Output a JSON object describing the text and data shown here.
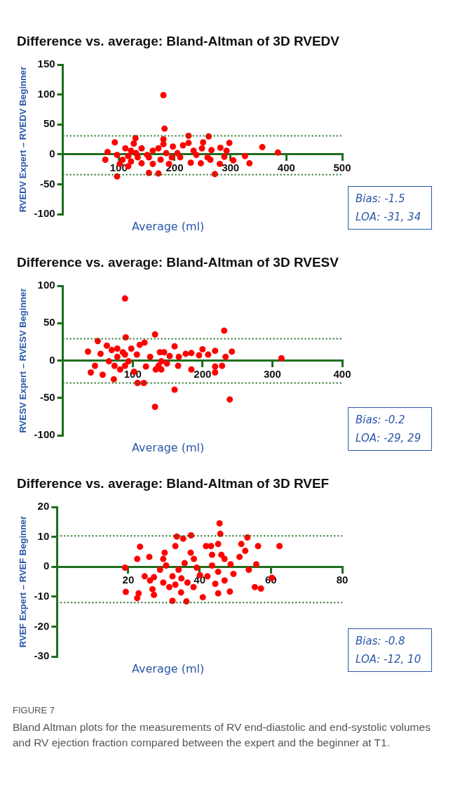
{
  "chart_data": [
    {
      "type": "scatter",
      "title": "Difference vs. average: Bland-Altman of 3D RVEDV",
      "xlabel": "Average (ml)",
      "ylabel": "RVEDV Expert – RVEDV Beginner",
      "xlim": [
        0,
        500
      ],
      "xticks": [
        100,
        200,
        300,
        400,
        500
      ],
      "ylim": [
        -100,
        150
      ],
      "yticks": [
        -100,
        -50,
        0,
        50,
        100,
        150
      ],
      "marker": "circle",
      "series": [
        {
          "color": "#ff0000",
          "x": [
            180,
            182,
            180,
            225,
            261,
            130,
            93,
            127,
            298,
            357,
            385,
            251,
            80,
            76,
            97,
            154,
            171,
            272,
            247,
            281,
            334,
            305,
            326,
            289,
            266,
            293,
            282,
            215,
            225,
            197,
            210,
            229,
            190,
            175,
            161,
            141,
            117,
            107,
            97,
            112,
            122,
            131,
            141,
            151,
            161,
            171,
            180,
            185,
            195,
            205,
            239,
            249,
            259,
            154,
            134,
            117,
            122,
            102,
            234,
            264
          ],
          "values": [
            99,
            43,
            25,
            31,
            30,
            27,
            20,
            18,
            19,
            12,
            3,
            20,
            4,
            -9,
            -37,
            -31,
            -32,
            -33,
            -15,
            -16,
            -15,
            -10,
            -3,
            -4,
            7,
            6,
            11,
            15,
            19,
            13,
            -5,
            -14,
            -16,
            -9,
            -16,
            -15,
            -20,
            -9,
            -1,
            10,
            6,
            2,
            10,
            -1,
            6,
            10,
            17,
            2,
            -5,
            2,
            -1,
            10,
            -5,
            -5,
            -5,
            -3,
            -12,
            -16,
            6,
            -9
          ]
        }
      ],
      "ref_lines": [
        {
          "axis": "y",
          "value": 31,
          "color": "#1e6e1e",
          "line_style": "dotted"
        },
        {
          "axis": "y",
          "value": -34,
          "color": "#1e6e1e",
          "line_style": "dotted"
        }
      ],
      "annotations": [
        "Bias: -1.5",
        "LOA: -31, 34"
      ]
    },
    {
      "type": "scatter",
      "title": "Difference vs. average: Bland-Altman of 3D RVESV",
      "xlabel": "Average (ml)",
      "ylabel": "RVESV Expert – RVESV Beginner",
      "xlim": [
        0,
        400
      ],
      "xticks": [
        100,
        200,
        300,
        400
      ],
      "ylim": [
        -100,
        100
      ],
      "yticks": [
        -100,
        -50,
        0,
        50,
        100
      ],
      "marker": "circle",
      "series": [
        {
          "color": "#ff0000",
          "x": [
            89,
            90,
            132,
            231,
            239,
            132,
            160,
            107,
            116,
            73,
            313,
            242,
            233,
            228,
            218,
            218,
            218,
            200,
            208,
            195,
            184,
            184,
            176,
            166,
            160,
            165,
            153,
            145,
            141,
            137,
            133,
            141,
            149,
            125,
            119,
            117,
            110,
            106,
            98,
            94,
            89,
            86,
            82,
            78,
            70,
            63,
            50,
            36,
            40,
            57,
            46,
            54,
            66,
            74,
            102,
            89,
            78,
            139
          ],
          "values": [
            83,
            31,
            35,
            40,
            -52,
            -62,
            -39,
            -30,
            -30,
            -25,
            3,
            12,
            5,
            -7,
            -8,
            -16,
            13,
            15,
            8,
            7,
            10,
            -12,
            9,
            5,
            19,
            -7,
            6,
            11,
            -1,
            -7,
            -12,
            -12,
            -4,
            5,
            -8,
            24,
            21,
            8,
            16,
            -1,
            -7,
            11,
            -12,
            5,
            14,
            20,
            26,
            12,
            -16,
            -19,
            -7,
            9,
            -1,
            -7,
            -15,
            8,
            16,
            11
          ]
        }
      ],
      "ref_lines": [
        {
          "axis": "y",
          "value": 29,
          "color": "#1e6e1e",
          "line_style": "dotted"
        },
        {
          "axis": "y",
          "value": -30,
          "color": "#1e6e1e",
          "line_style": "dotted"
        }
      ],
      "annotations": [
        "Bias: -0.2",
        "LOA: -29, 29"
      ]
    },
    {
      "type": "scatter",
      "title": "Difference vs. average: Bland-Altman of 3D RVEF",
      "xlabel": "Average (ml)",
      "ylabel": "RVEF Expert – RVEF Beginner",
      "xlim": [
        0,
        80
      ],
      "xticks": [
        20,
        40,
        60,
        80
      ],
      "ylim": [
        -30,
        20
      ],
      "yticks": [
        -30,
        -20,
        -10,
        0,
        10,
        20
      ],
      "marker": "circle",
      "series": [
        {
          "color": "#ff0000",
          "x": [
            45.6,
            45.8,
            53.4,
            62.4,
            56.4,
            51.7,
            19.1,
            19.3,
            22.5,
            22.9,
            23.3,
            22.5,
            25.9,
            27.2,
            26.8,
            27.2,
            29.8,
            30.2,
            32.4,
            33.2,
            33.6,
            35.4,
            37.6,
            36.3,
            34.8,
            40.9,
            41.8,
            43.2,
            45.2,
            43.5,
            46.1,
            47,
            48.7,
            49.5,
            48.5,
            45.2,
            44.4,
            42.2,
            40.1,
            39.2,
            38.4,
            37.5,
            35.8,
            34.1,
            32.4,
            30.6,
            28.9,
            29.8,
            31.5,
            33.2,
            34.9,
            36.6,
            38.3,
            43.5,
            45.2,
            47,
            51.2,
            53.8,
            55.5,
            57.2,
            55.9,
            60.3,
            52.8,
            26.1,
            24.6
          ],
          "values": [
            14.5,
            11,
            9.8,
            6.9,
            6.9,
            7.6,
            -0.3,
            -8.4,
            -10.5,
            -8.9,
            6.7,
            2.6,
            3.3,
            -3.5,
            -7.5,
            -9.4,
            2.6,
            4.7,
            -11.4,
            6.9,
            10.1,
            9.4,
            10.5,
            -11.6,
            -8.6,
            -10.2,
            6.9,
            6.9,
            7.6,
            4,
            4,
            2.6,
            0.8,
            -2.4,
            -8.3,
            -8.9,
            -5.7,
            -3.2,
            -2.8,
            -0.3,
            2.6,
            4.7,
            1.2,
            -1,
            -3.2,
            0.4,
            -1,
            -5.3,
            -6.8,
            -6,
            -3.9,
            -5.3,
            -6.8,
            0.4,
            -1.7,
            -4.6,
            3.3,
            -1,
            -6.8,
            -7.3,
            0.8,
            -3.7,
            5.3,
            -4.6,
            -3.2
          ]
        }
      ],
      "ref_lines": [
        {
          "axis": "y",
          "value": 10.3,
          "color": "#1e6e1e",
          "line_style": "dotted"
        },
        {
          "axis": "y",
          "value": -12,
          "color": "#1e6e1e",
          "line_style": "dotted"
        }
      ],
      "annotations": [
        "Bias: -0.8",
        "LOA: -12, 10",
        "FIGURE 7",
        "Bland Altman plots for the measurements of RV end-diastolic and end-systolic volumes and RV ejection fraction compared between the expert and the beginner at T1."
      ]
    }
  ]
}
